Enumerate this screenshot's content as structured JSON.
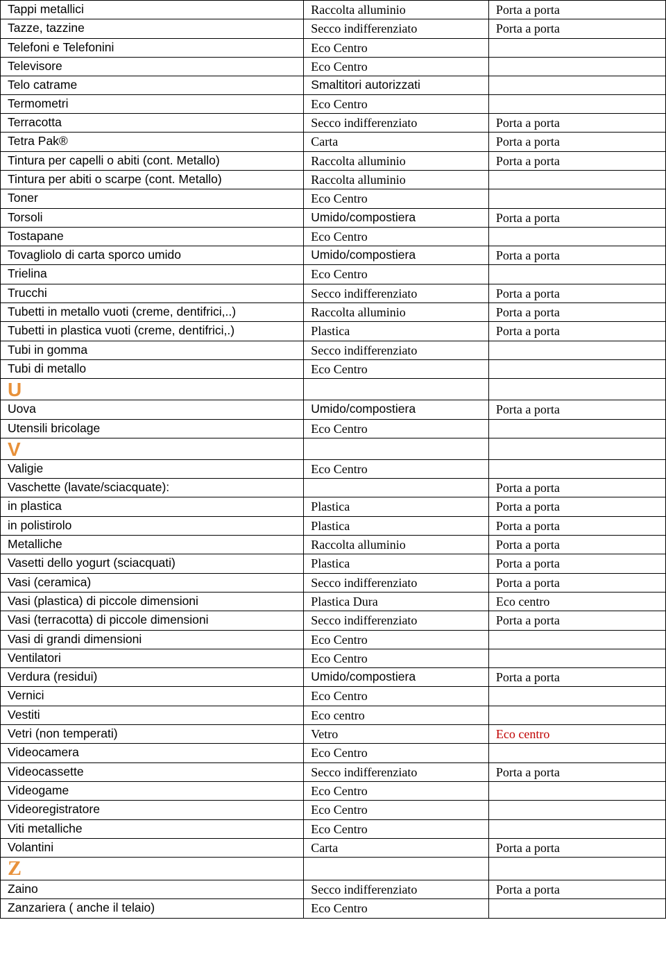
{
  "colors": {
    "section_header": "#e8913a",
    "red_text": "#c00000",
    "border": "#000000",
    "background": "#ffffff",
    "text": "#000000"
  },
  "columns": {
    "c1_width_pct": 45.6,
    "c2_width_pct": 27.8,
    "c3_width_pct": 26.6
  },
  "rows": [
    {
      "c1": "Tappi metallici",
      "c2": "Raccolta alluminio",
      "c2cls": "serif",
      "c3": "Porta a porta",
      "c3cls": "serif"
    },
    {
      "c1": "Tazze, tazzine",
      "c2": "Secco indifferenziato",
      "c2cls": "serif",
      "c3": "Porta a porta",
      "c3cls": "serif"
    },
    {
      "c1": "Telefoni e Telefonini",
      "c2": "Eco Centro",
      "c2cls": "serif",
      "c3": ""
    },
    {
      "c1": "Televisore",
      "c2": "Eco Centro",
      "c2cls": "serif",
      "c3": ""
    },
    {
      "c1": "Telo catrame",
      "c2": "Smaltitori autorizzati",
      "c3": ""
    },
    {
      "c1": "Termometri",
      "c2": "Eco Centro",
      "c2cls": "serif",
      "c3": ""
    },
    {
      "c1": "Terracotta",
      "c2": "Secco indifferenziato",
      "c2cls": "serif",
      "c3": "Porta a porta",
      "c3cls": "serif"
    },
    {
      "c1": "Tetra Pak®",
      "c2": "Carta",
      "c2cls": "serif",
      "c3": "Porta a porta",
      "c3cls": "serif"
    },
    {
      "c1": "Tintura per capelli o abiti (cont. Metallo)",
      "c2": "Raccolta alluminio",
      "c2cls": "serif",
      "c3": "Porta a porta",
      "c3cls": "serif"
    },
    {
      "c1": "Tintura per abiti o scarpe (cont. Metallo)",
      "c2": "Raccolta alluminio",
      "c2cls": "serif",
      "c3": ""
    },
    {
      "c1": "Toner",
      "c2": "Eco Centro",
      "c2cls": "serif",
      "c3": ""
    },
    {
      "c1": "Torsoli",
      "c2": "Umido/compostiera",
      "c3": "Porta a porta",
      "c3cls": "serif"
    },
    {
      "c1": "Tostapane",
      "c2": "Eco Centro",
      "c2cls": "serif",
      "c3": ""
    },
    {
      "c1": "Tovagliolo di carta sporco umido",
      "c2": "Umido/compostiera",
      "c3": "Porta a porta",
      "c3cls": "serif"
    },
    {
      "c1": "Trielina",
      "c2": "Eco Centro",
      "c2cls": "serif",
      "c3": ""
    },
    {
      "c1": "Trucchi",
      "c2": "Secco indifferenziato",
      "c2cls": "serif",
      "c3": "Porta a porta",
      "c3cls": "serif"
    },
    {
      "c1": "Tubetti in metallo vuoti (creme, dentifrici,..)",
      "c2": "Raccolta alluminio",
      "c2cls": "serif",
      "c3": "Porta a porta",
      "c3cls": "serif"
    },
    {
      "c1": "Tubetti in plastica vuoti (creme, dentifrici,.)",
      "c2": "Plastica",
      "c2cls": "serif",
      "c3": "Porta a porta",
      "c3cls": "serif"
    },
    {
      "c1": "Tubi in gomma",
      "c2": "Secco indifferenziato",
      "c2cls": "serif",
      "c3": ""
    },
    {
      "c1": "Tubi di metallo",
      "c2": "Eco Centro",
      "c2cls": "serif",
      "c3": ""
    },
    {
      "section": "U"
    },
    {
      "c1": "Uova",
      "c2": "Umido/compostiera",
      "c3": "Porta a porta",
      "c3cls": "serif"
    },
    {
      "c1": "Utensili bricolage",
      "c2": "Eco Centro",
      "c2cls": "serif",
      "c3": ""
    },
    {
      "section": "V"
    },
    {
      "c1": "Valigie",
      "c2": "Eco Centro",
      "c2cls": "serif",
      "c3": ""
    },
    {
      "c1": "Vaschette (lavate/sciacquate):",
      "c2": "",
      "c3": "Porta a porta",
      "c3cls": "serif"
    },
    {
      "c1": "in plastica",
      "c2": "Plastica",
      "c2cls": "serif",
      "c3": "Porta a porta",
      "c3cls": "serif"
    },
    {
      "c1": "in polistirolo",
      "c2": "Plastica",
      "c2cls": "serif",
      "c3": "Porta a porta",
      "c3cls": "serif"
    },
    {
      "c1": "Metalliche",
      "c2": "Raccolta alluminio",
      "c2cls": "serif",
      "c3": "Porta a porta",
      "c3cls": "serif"
    },
    {
      "c1": "Vasetti dello yogurt (sciacquati)",
      "c2": "Plastica",
      "c2cls": "serif",
      "c3": "Porta a porta",
      "c3cls": "serif"
    },
    {
      "c1": "Vasi (ceramica)",
      "c2": "Secco indifferenziato",
      "c2cls": "serif",
      "c3": "Porta a porta",
      "c3cls": "serif"
    },
    {
      "c1": "Vasi (plastica) di piccole dimensioni",
      "c2": "Plastica Dura",
      "c2cls": "serif",
      "c3": "Eco centro",
      "c3cls": "serif"
    },
    {
      "c1": "Vasi (terracotta) di piccole dimensioni",
      "c2": "Secco indifferenziato",
      "c2cls": "serif",
      "c3": "Porta a porta",
      "c3cls": "serif"
    },
    {
      "c1": "Vasi di grandi dimensioni",
      "c2": "Eco Centro",
      "c2cls": "serif",
      "c3": ""
    },
    {
      "c1": "Ventilatori",
      "c2": "Eco Centro",
      "c2cls": "serif",
      "c3": ""
    },
    {
      "c1": "Verdura (residui)",
      "c2": "Umido/compostiera",
      "c3": "Porta a porta",
      "c3cls": "serif"
    },
    {
      "c1": "Vernici",
      "c2": "Eco Centro",
      "c2cls": "serif",
      "c3": ""
    },
    {
      "c1": "Vestiti",
      "c2": "Eco centro",
      "c2cls": "serif",
      "c3": ""
    },
    {
      "c1": "Vetri (non temperati)",
      "c2": "Vetro",
      "c2cls": "serif",
      "c3": "Eco centro",
      "c3cls": "serif red"
    },
    {
      "c1": "Videocamera",
      "c2": "Eco Centro",
      "c2cls": "serif",
      "c3": ""
    },
    {
      "c1": "Videocassette",
      "c2": "Secco indifferenziato",
      "c2cls": "serif",
      "c3": "Porta a porta",
      "c3cls": "serif"
    },
    {
      "c1": "Videogame",
      "c2": "Eco Centro",
      "c2cls": "serif",
      "c3": ""
    },
    {
      "c1": "Videoregistratore",
      "c2": "Eco Centro",
      "c2cls": "serif",
      "c3": ""
    },
    {
      "c1": "Viti metalliche",
      "c2": "Eco Centro",
      "c2cls": "serif",
      "c3": ""
    },
    {
      "c1": "Volantini",
      "c2": "Carta",
      "c2cls": "serif",
      "c3": "Porta a porta",
      "c3cls": "serif"
    },
    {
      "section": "Z",
      "serif_section": true
    },
    {
      "c1": "Zaino",
      "c2": "Secco indifferenziato",
      "c2cls": "serif",
      "c3": "Porta a porta",
      "c3cls": "serif"
    },
    {
      "c1": "Zanzariera ( anche il telaio)",
      "c2": "Eco Centro",
      "c2cls": "serif",
      "c3": ""
    }
  ]
}
